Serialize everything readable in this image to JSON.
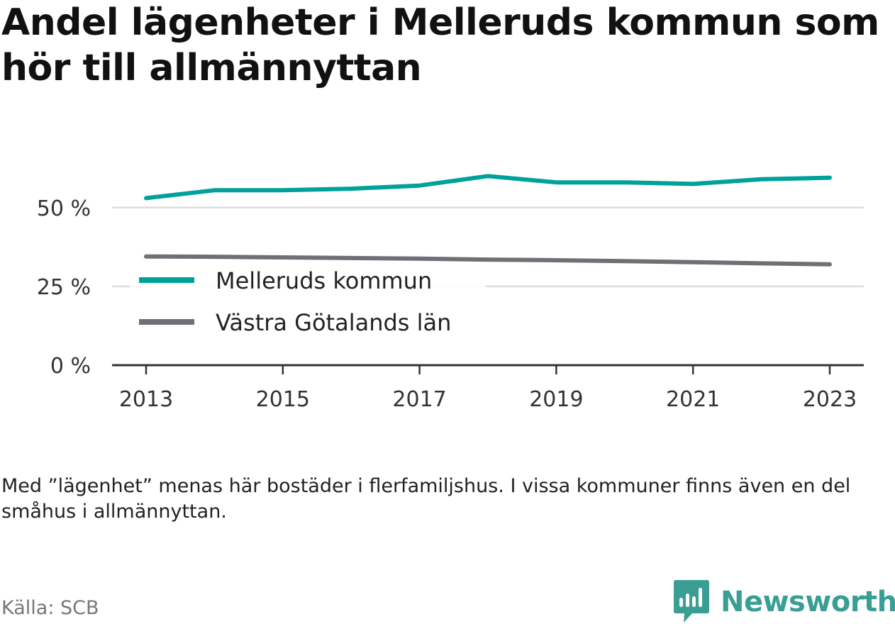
{
  "title": "Andel lägenheter i Melleruds kommun som hör till allmännyttan",
  "note": "Med ”lägenhet” menas här bostäder i flerfamiljshus. I vissa kommuner finns även en del småhus i allmännyttan.",
  "source": "Källa: SCB",
  "brand": {
    "name": "Newsworthy",
    "color": "#3a9e95",
    "icon": "newsworthy-logo-icon"
  },
  "chart_data": {
    "type": "line",
    "title": "Andel lägenheter i Melleruds kommun som hör till allmännyttan",
    "xlabel": "",
    "ylabel": "",
    "x": [
      2013,
      2014,
      2015,
      2016,
      2017,
      2018,
      2019,
      2020,
      2021,
      2022,
      2023
    ],
    "x_ticks": [
      "2013",
      "2015",
      "2017",
      "2019",
      "2021",
      "2023"
    ],
    "y_ticks": [
      "0 %",
      "25 %",
      "50 %"
    ],
    "y_tick_values": [
      0,
      25,
      50
    ],
    "ylim": [
      0,
      63
    ],
    "grid": true,
    "legend_position": "left",
    "series": [
      {
        "name": "Melleruds kommun",
        "color": "#00a19a",
        "values": [
          53,
          55.5,
          55.5,
          56,
          57,
          60,
          58,
          58,
          57.5,
          59,
          59.5
        ]
      },
      {
        "name": "Västra Götalands län",
        "color": "#6f6f76",
        "values": [
          34.5,
          34.4,
          34.2,
          34,
          33.8,
          33.5,
          33.3,
          33,
          32.7,
          32.3,
          32
        ]
      }
    ]
  }
}
